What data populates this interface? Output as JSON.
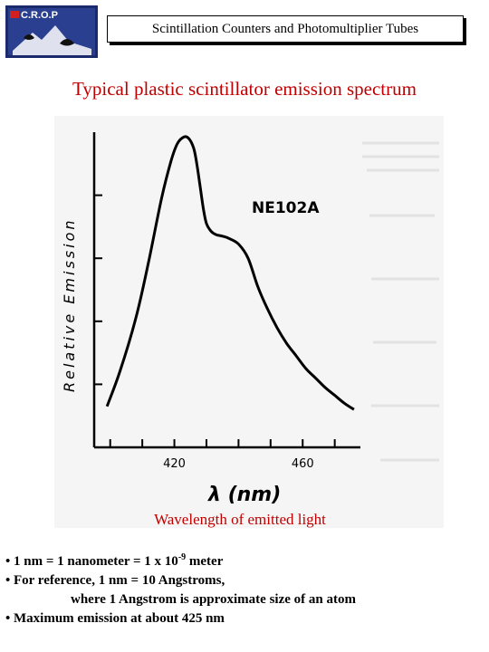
{
  "header": {
    "logo_text": "C.R.O.P",
    "title": "Scintillation Counters and Photomultiplier Tubes"
  },
  "slide_title": "Typical plastic scintillator emission spectrum",
  "chart_data": {
    "type": "line",
    "title": "NE102A",
    "xlabel": "λ (nm)",
    "ylabel": "Relative Emission",
    "xlim": [
      395,
      478
    ],
    "ylim": [
      0,
      1.0
    ],
    "x_ticks": [
      420,
      460
    ],
    "grid": false,
    "series": [
      {
        "x": [
          399,
          403,
          408,
          412,
          416,
          419,
          421,
          423,
          424.5,
          426,
          427,
          428,
          429,
          430,
          431.5,
          433,
          435,
          437,
          440,
          443,
          446,
          449,
          452,
          455,
          458,
          461,
          464,
          467,
          470,
          473,
          476
        ],
        "y": [
          0.13,
          0.24,
          0.41,
          0.59,
          0.79,
          0.91,
          0.965,
          0.985,
          0.98,
          0.95,
          0.9,
          0.83,
          0.76,
          0.71,
          0.685,
          0.675,
          0.67,
          0.663,
          0.645,
          0.6,
          0.51,
          0.44,
          0.38,
          0.33,
          0.29,
          0.25,
          0.22,
          0.19,
          0.165,
          0.14,
          0.12
        ]
      }
    ]
  },
  "caption": "Wavelength of emitted light",
  "bullets": {
    "b1_pre": "• 1 nm = 1 nanometer = 1 x 10",
    "b1_sup": "-9",
    "b1_post": " meter",
    "b2": "• For reference, 1 nm = 10 Angstroms,",
    "b2_cont": "where 1 Angstrom is approximate size of an atom",
    "b3": "• Maximum emission at about 425 nm"
  }
}
